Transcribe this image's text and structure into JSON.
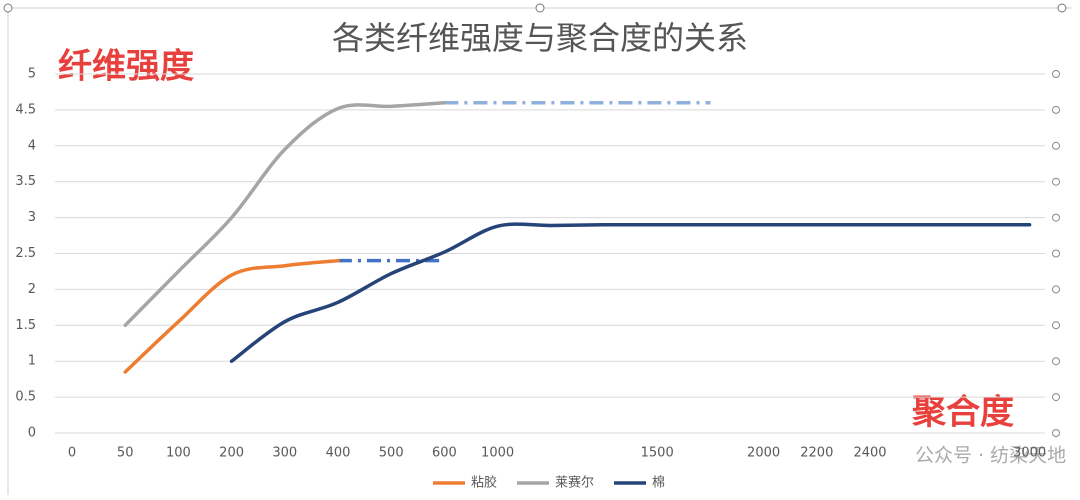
{
  "chart_data": {
    "type": "line",
    "title": "各类纤维强度与聚合度的关系",
    "y_annotation": "纤维强度",
    "x_annotation": "聚合度",
    "watermark": "公众号 · 纺染天地",
    "categories": [
      0,
      50,
      100,
      200,
      300,
      400,
      500,
      600,
      1000,
      null,
      null,
      1500,
      null,
      2000,
      2200,
      2400,
      null,
      null,
      3000
    ],
    "series": [
      {
        "name": "粘胶",
        "color": "#ed7d31",
        "values": [
          null,
          0.85,
          1.55,
          2.2,
          2.33,
          2.4,
          null,
          null,
          null,
          null,
          null,
          null,
          null,
          null,
          null,
          null,
          null,
          null,
          null
        ]
      },
      {
        "name": "莱赛尔",
        "color": "#a5a5a5",
        "values": [
          null,
          1.5,
          2.25,
          3.0,
          3.95,
          4.52,
          4.55,
          4.6,
          null,
          null,
          null,
          null,
          null,
          null,
          null,
          null,
          null,
          null,
          null
        ]
      },
      {
        "name": "棉",
        "color": "#264478",
        "values": [
          null,
          null,
          null,
          1.0,
          1.55,
          1.82,
          2.22,
          2.52,
          2.88,
          2.89,
          2.9,
          2.9,
          2.9,
          2.9,
          2.9,
          2.9,
          2.9,
          2.9,
          2.9
        ]
      }
    ],
    "dashed_extensions": [
      {
        "color": "#4472c4",
        "values": [
          null,
          null,
          null,
          null,
          null,
          2.4,
          2.4,
          2.4,
          null,
          null,
          null,
          null,
          null,
          null,
          null,
          null,
          null,
          null,
          null
        ]
      },
      {
        "color": "#8fb0dc",
        "values": [
          null,
          null,
          null,
          null,
          null,
          null,
          null,
          4.6,
          4.6,
          4.6,
          4.6,
          4.6,
          4.6,
          null,
          null,
          null,
          null,
          null,
          null
        ]
      }
    ],
    "ylim": [
      0,
      5
    ],
    "yticks": [
      0,
      0.5,
      1,
      1.5,
      2,
      2.5,
      3,
      3.5,
      4,
      4.5,
      5
    ],
    "grid": true,
    "smooth": true,
    "legend": "bottom"
  }
}
